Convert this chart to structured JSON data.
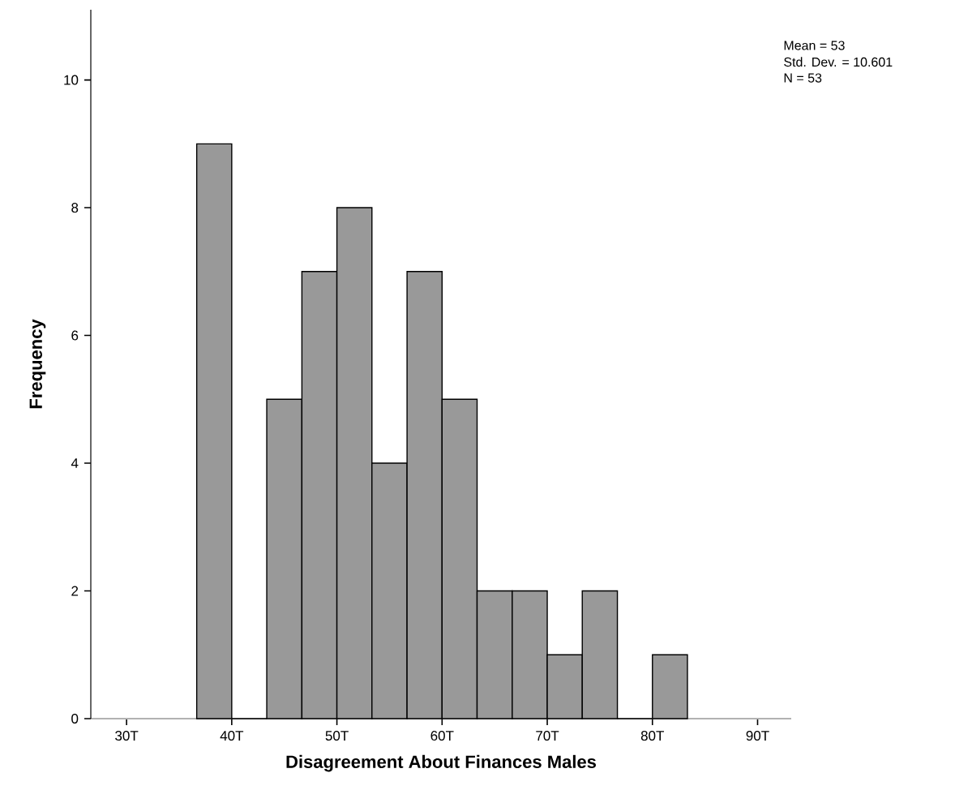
{
  "chart_data": {
    "type": "histogram",
    "xlabel": "Disagreement About Finances Males",
    "ylabel": "Frequency",
    "bins": [
      36.67,
      40,
      43.33,
      46.67,
      50,
      53.33,
      56.67,
      60,
      63.33,
      66.67,
      70,
      73.33,
      76.67,
      80,
      83.33
    ],
    "values": [
      9,
      0,
      5,
      7,
      8,
      4,
      7,
      5,
      2,
      2,
      1,
      2,
      0,
      1
    ],
    "color": "#999999",
    "xlim": [
      26.6,
      93.2
    ],
    "xticks": [
      {
        "value": 30,
        "label": "30T"
      },
      {
        "value": 40,
        "label": "40T"
      },
      {
        "value": 50,
        "label": "50T"
      },
      {
        "value": 60,
        "label": "60T"
      },
      {
        "value": 70,
        "label": "70T"
      },
      {
        "value": 80,
        "label": "80T"
      },
      {
        "value": 90,
        "label": "90T"
      }
    ],
    "ylim": [
      0,
      11.1
    ],
    "yticks": [
      0,
      2,
      4,
      6,
      8,
      10
    ],
    "grid": false,
    "annotations": [
      "Mean = 53",
      "Std. Dev. = 10.601",
      "N = 53"
    ]
  }
}
